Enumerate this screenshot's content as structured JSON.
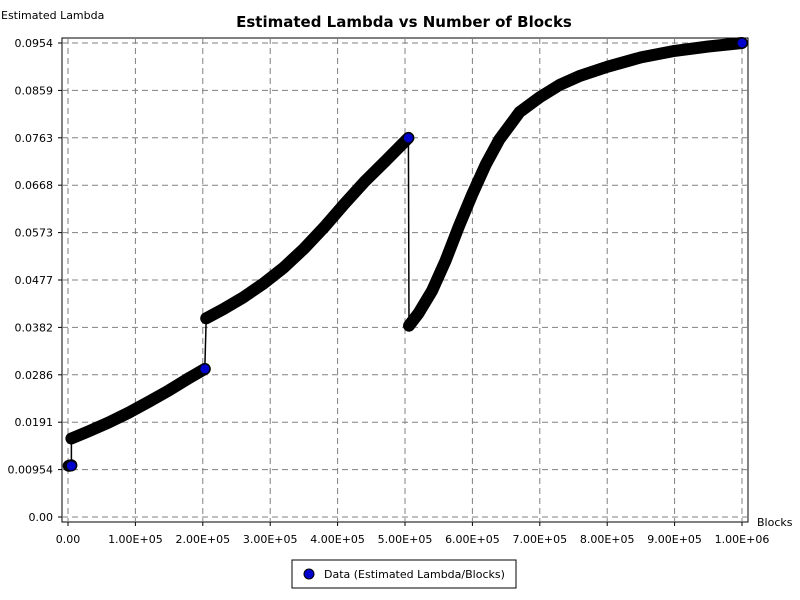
{
  "chart_data": {
    "type": "scatter",
    "title": "Estimated Lambda vs Number of Blocks",
    "xlabel": "Blocks",
    "ylabel": "Estimated Lambda",
    "xlim": [
      0,
      1000000
    ],
    "ylim": [
      0,
      0.0954
    ],
    "x_ticks": [
      "0.00",
      "1.00E+05",
      "2.00E+05",
      "3.00E+05",
      "4.00E+05",
      "5.00E+05",
      "6.00E+05",
      "7.00E+05",
      "8.00E+05",
      "9.00E+05",
      "1.00E+06"
    ],
    "y_ticks": [
      "0.00",
      "0.00954",
      "0.0191",
      "0.0286",
      "0.0382",
      "0.0477",
      "0.0573",
      "0.0668",
      "0.0763",
      "0.0859",
      "0.0954"
    ],
    "grid": true,
    "legend_position": "bottom-center",
    "series": [
      {
        "name": "Data (Estimated Lambda/Blocks)",
        "color": "#0000cc",
        "points": [
          [
            1000,
            0.0103
          ],
          [
            5000,
            0.0104
          ],
          [
            5000,
            0.0158
          ],
          [
            30000,
            0.0172
          ],
          [
            60000,
            0.019
          ],
          [
            90000,
            0.021
          ],
          [
            120000,
            0.0232
          ],
          [
            150000,
            0.0255
          ],
          [
            180000,
            0.028
          ],
          [
            203000,
            0.0298
          ],
          [
            205000,
            0.04
          ],
          [
            230000,
            0.0418
          ],
          [
            260000,
            0.0442
          ],
          [
            290000,
            0.047
          ],
          [
            320000,
            0.0502
          ],
          [
            350000,
            0.054
          ],
          [
            380000,
            0.0583
          ],
          [
            410000,
            0.063
          ],
          [
            440000,
            0.0675
          ],
          [
            470000,
            0.0715
          ],
          [
            505000,
            0.0763
          ],
          [
            506000,
            0.0385
          ],
          [
            520000,
            0.041
          ],
          [
            540000,
            0.0455
          ],
          [
            560000,
            0.0515
          ],
          [
            580000,
            0.0585
          ],
          [
            600000,
            0.065
          ],
          [
            620000,
            0.071
          ],
          [
            640000,
            0.076
          ],
          [
            670000,
            0.0815
          ],
          [
            700000,
            0.0845
          ],
          [
            730000,
            0.087
          ],
          [
            760000,
            0.0888
          ],
          [
            800000,
            0.0906
          ],
          [
            850000,
            0.0925
          ],
          [
            900000,
            0.0938
          ],
          [
            950000,
            0.0947
          ],
          [
            1000000,
            0.0954
          ]
        ],
        "markers": [
          [
            5000,
            0.0103
          ],
          [
            203000,
            0.0298
          ],
          [
            505000,
            0.0763
          ],
          [
            1000000,
            0.0954
          ]
        ]
      }
    ]
  }
}
